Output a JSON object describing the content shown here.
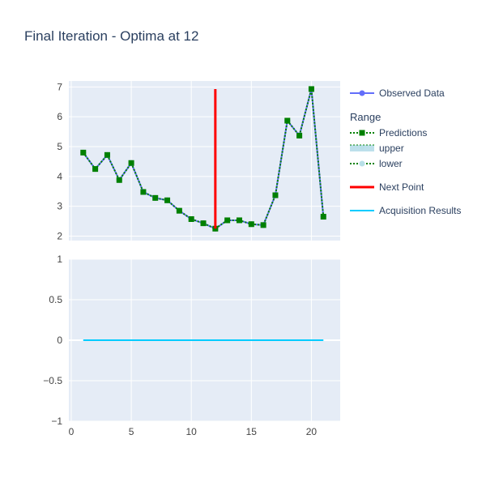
{
  "chart_data": {
    "type": "line",
    "title": "Final Iteration - Optima at 12",
    "subplots": [
      {
        "id": "top",
        "xlim": [
          -0.2,
          22.4
        ],
        "ylim": [
          1.85,
          7.2
        ],
        "y_ticks": [
          2,
          3,
          4,
          5,
          6,
          7
        ],
        "x_gridlines": [
          0,
          5,
          10,
          15,
          20
        ]
      },
      {
        "id": "bottom",
        "xlim": [
          -0.2,
          22.4
        ],
        "ylim": [
          -1,
          1
        ],
        "x_ticks": [
          0,
          5,
          10,
          15,
          20
        ],
        "y_ticks": [
          -1,
          -0.5,
          0,
          0.5,
          1
        ],
        "y_tick_labels": [
          "−1",
          "−0.5",
          "0",
          "0.5",
          "1"
        ]
      }
    ],
    "series": [
      {
        "name": "Observed Data",
        "subplot": "top",
        "mode": "lines+markers",
        "color": "#636efa",
        "x": [
          1,
          2,
          3,
          4,
          5,
          6,
          7,
          8,
          9,
          10,
          11,
          12,
          13,
          14,
          15,
          16,
          17,
          18,
          19,
          20,
          21
        ],
        "y": [
          4.8,
          4.25,
          4.72,
          3.88,
          4.45,
          3.48,
          3.28,
          3.2,
          2.85,
          2.57,
          2.43,
          2.25,
          2.53,
          2.53,
          2.4,
          2.37,
          3.37,
          5.87,
          5.37,
          6.93,
          2.65
        ]
      },
      {
        "name": "Predictions",
        "subplot": "top",
        "mode": "lines+markers",
        "dash": "dot",
        "marker": "square",
        "color": "#008000",
        "x": [
          1,
          2,
          3,
          4,
          5,
          6,
          7,
          8,
          9,
          10,
          11,
          12,
          13,
          14,
          15,
          16,
          17,
          18,
          19,
          20,
          21
        ],
        "y": [
          4.8,
          4.25,
          4.72,
          3.88,
          4.45,
          3.48,
          3.28,
          3.2,
          2.85,
          2.57,
          2.43,
          2.25,
          2.53,
          2.53,
          2.4,
          2.37,
          3.37,
          5.87,
          5.37,
          6.93,
          2.65
        ]
      },
      {
        "name": "Next Point",
        "subplot": "top",
        "mode": "lines",
        "color": "#ff0000",
        "x": [
          12,
          12
        ],
        "y": [
          2.25,
          6.93
        ]
      },
      {
        "name": "Acquisition Results",
        "subplot": "bottom",
        "mode": "lines",
        "color": "#00ccff",
        "x": [
          1,
          21
        ],
        "y": [
          0,
          0
        ]
      }
    ],
    "legend": {
      "placement": "right",
      "group_title": "Range",
      "entries": [
        {
          "label": "Observed Data",
          "style": "line-marker",
          "color": "#636efa"
        },
        {
          "label": "Predictions",
          "style": "dotted-square",
          "color": "#008000"
        },
        {
          "label": "upper",
          "style": "band",
          "color": "#add8e6"
        },
        {
          "label": "lower",
          "style": "dotted-circle",
          "color": "#008000"
        },
        {
          "label": "Next Point",
          "style": "line",
          "color": "#ff0000"
        },
        {
          "label": "Acquisition Results",
          "style": "line",
          "color": "#00ccff"
        }
      ]
    },
    "colors": {
      "plot_bg": "#e5ecf6",
      "grid": "#ffffff",
      "text": "#2a3f5f",
      "tick_text": "#444444"
    },
    "grid": true
  }
}
